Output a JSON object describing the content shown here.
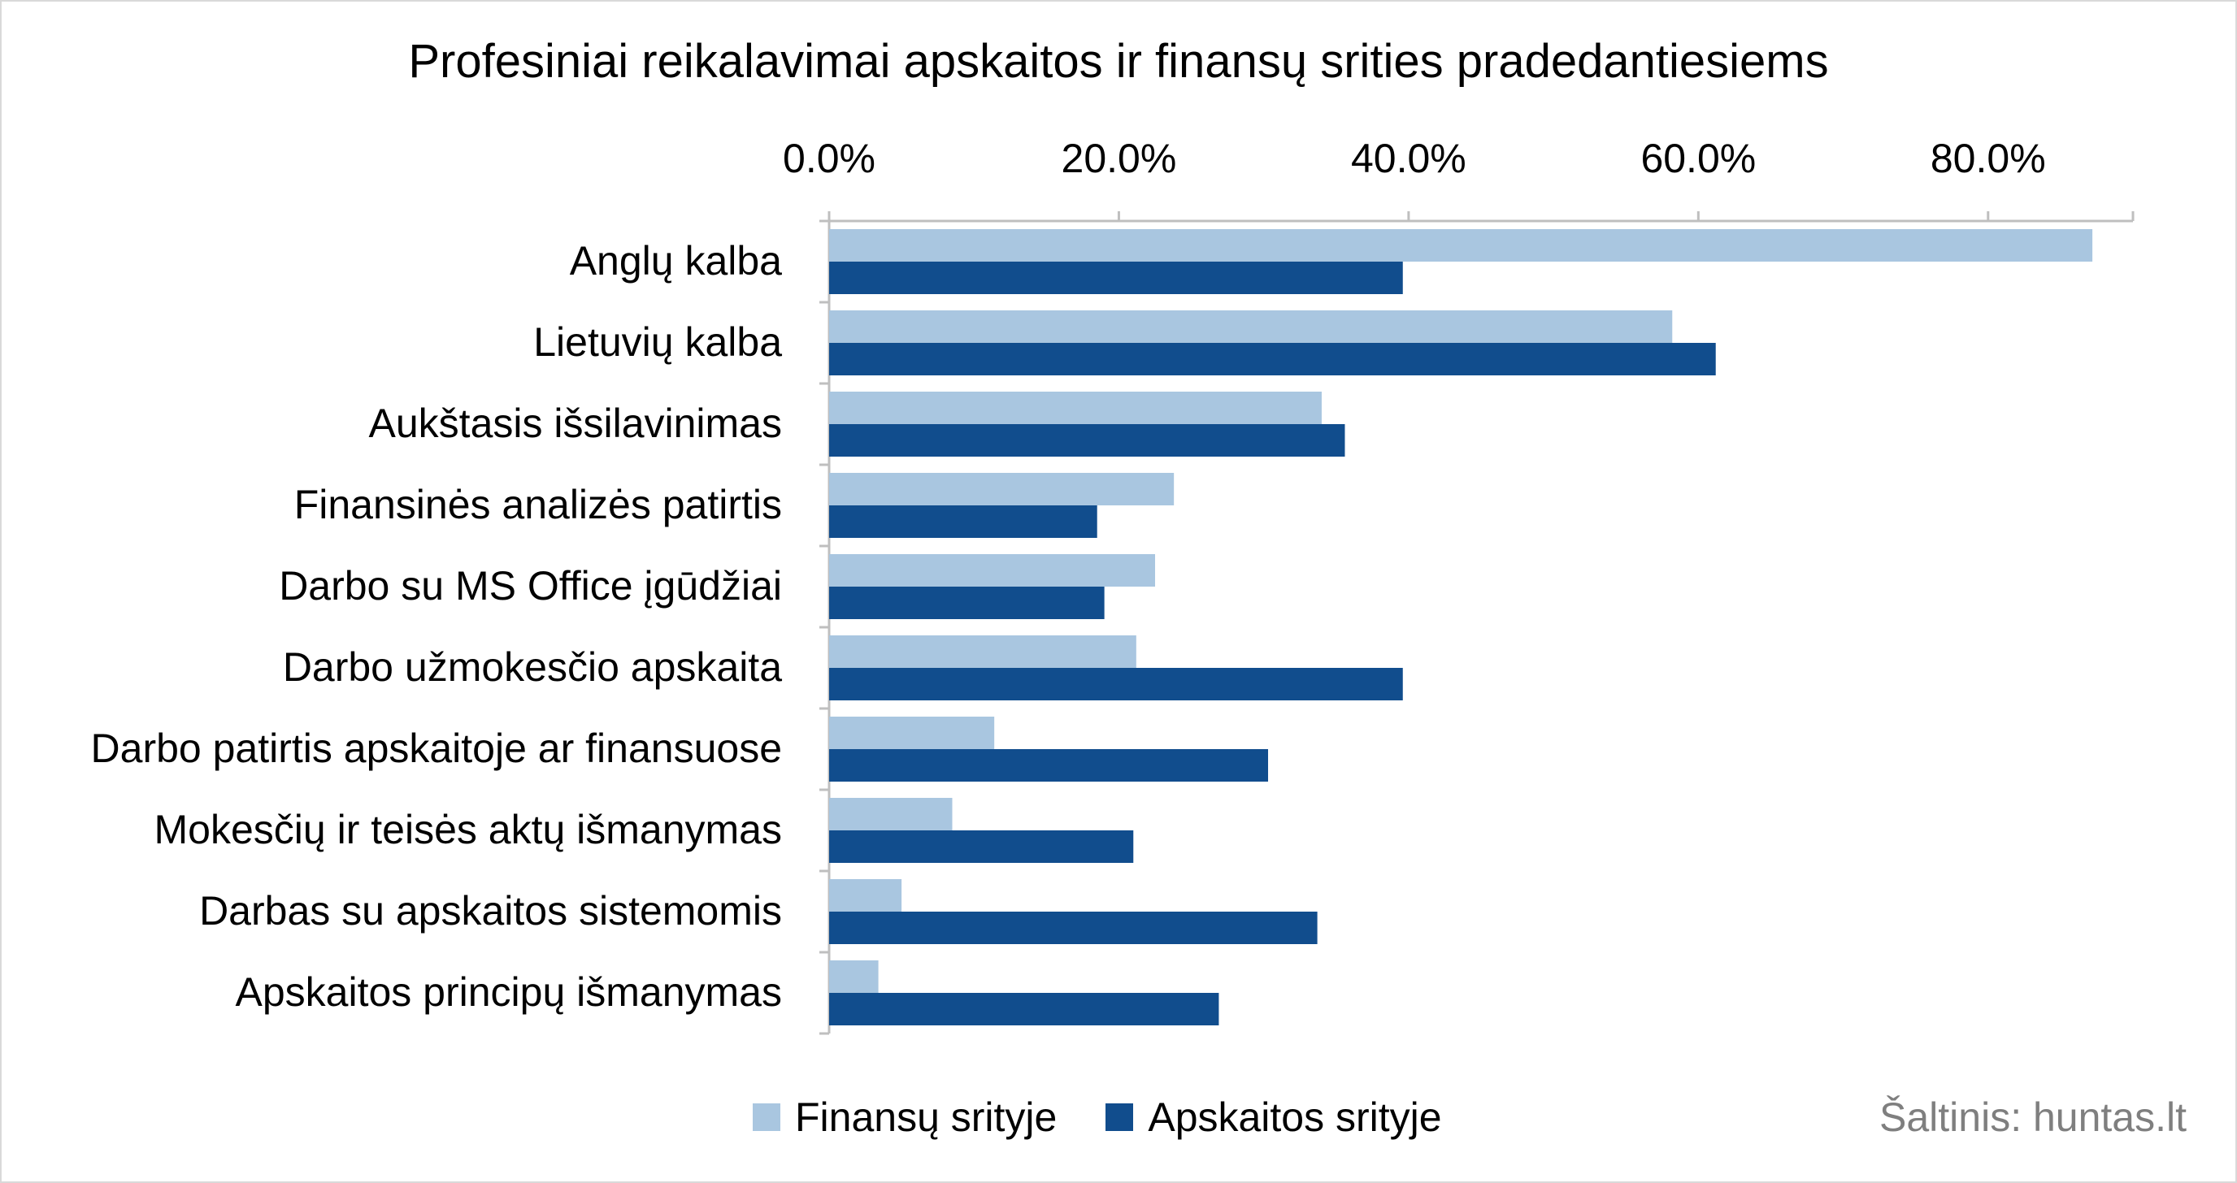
{
  "chart_data": {
    "type": "bar",
    "orientation": "horizontal",
    "title": "Profesiniai reikalavimai apskaitos ir finansų srities pradedantiesiems",
    "categories": [
      "Anglų kalba",
      "Lietuvių kalba",
      "Aukštasis išsilavinimas",
      "Finansinės analizės patirtis",
      "Darbo su MS Office įgūdžiai",
      "Darbo užmokesčio apskaita",
      "Darbo patirtis apskaitoje ar finansuose",
      "Mokesčių ir teisės aktų išmanymas",
      "Darbas su apskaitos sistemomis",
      "Apskaitos principų išmanymas"
    ],
    "series": [
      {
        "name": "Finansų srityje",
        "color": "#a9c6e0",
        "values": [
          87.2,
          58.2,
          34.0,
          23.8,
          22.5,
          21.2,
          11.4,
          8.5,
          5.0,
          3.4
        ]
      },
      {
        "name": "Apskaitos srityje",
        "color": "#114d8d",
        "values": [
          39.6,
          61.2,
          35.6,
          18.5,
          19.0,
          39.6,
          30.3,
          21.0,
          33.7,
          26.9
        ]
      }
    ],
    "xlim": [
      0,
      90
    ],
    "xticks": [
      0,
      20,
      40,
      60,
      80
    ],
    "xtick_labels": [
      "0.0%",
      "20.0%",
      "40.0%",
      "60.0%",
      "80.0%"
    ],
    "xaxis_position": "top",
    "grid": false,
    "legend_position": "bottom"
  },
  "source_label": "Šaltinis: huntas.lt"
}
